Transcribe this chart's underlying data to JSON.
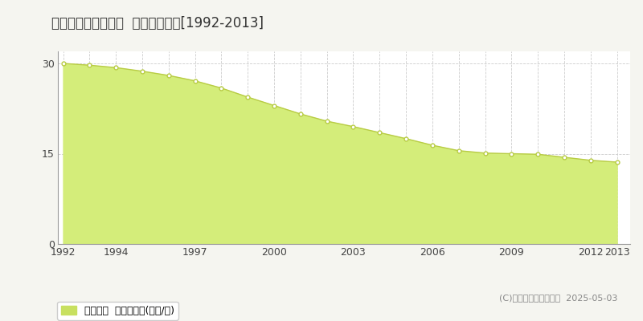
{
  "title": "郑楽郡大泉町城之内  公示地価推移[1992-2013]",
  "years": [
    1992,
    1993,
    1994,
    1995,
    1996,
    1997,
    1998,
    1999,
    2000,
    2001,
    2002,
    2003,
    2004,
    2005,
    2006,
    2007,
    2008,
    2009,
    2010,
    2011,
    2012,
    2013
  ],
  "values": [
    30.0,
    29.7,
    29.3,
    28.7,
    28.0,
    27.1,
    25.9,
    24.4,
    23.0,
    21.6,
    20.4,
    19.5,
    18.5,
    17.5,
    16.4,
    15.5,
    15.1,
    15.0,
    14.9,
    14.4,
    13.9,
    13.6
  ],
  "fill_color": "#d4ed7a",
  "line_color": "#b8cc44",
  "marker_color": "#ffffff",
  "marker_edge_color": "#b8cc44",
  "grid_color": "#cccccc",
  "background_color": "#f5f5f0",
  "plot_bg_color": "#ffffff",
  "ylim": [
    0,
    32
  ],
  "yticks": [
    0,
    15,
    30
  ],
  "xtick_years": [
    1992,
    1994,
    1997,
    2000,
    2003,
    2006,
    2009,
    2012,
    2013
  ],
  "legend_label": "公示地価  平均嵪単価(万円/嵪)",
  "legend_color": "#c8e060",
  "copyright_text": "(C)土地価格ドットコム  2025-05-03",
  "title_fontsize": 12,
  "axis_fontsize": 9,
  "legend_fontsize": 9,
  "copyright_fontsize": 8
}
